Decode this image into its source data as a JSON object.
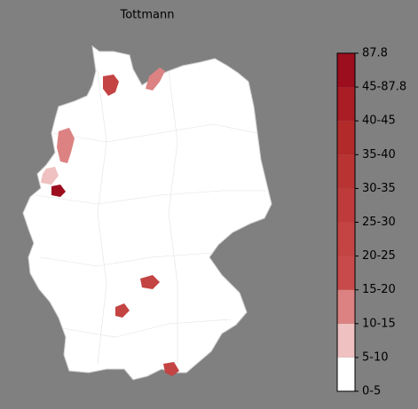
{
  "title": "Tottmann",
  "colorbar": {
    "labels": [
      "0-5",
      "5-10",
      "10-15",
      "15-20",
      "20-25",
      "25-30",
      "30-35",
      "35-40",
      "40-45",
      "45-87.8",
      "87.8"
    ],
    "colors": [
      "#ffffff",
      "#efc1c1",
      "#dc8282",
      "#c94a4a",
      "#c44343",
      "#bf3b3b",
      "#b93333",
      "#b22a2a",
      "#aa1d24",
      "#9c0d1e"
    ]
  }
}
